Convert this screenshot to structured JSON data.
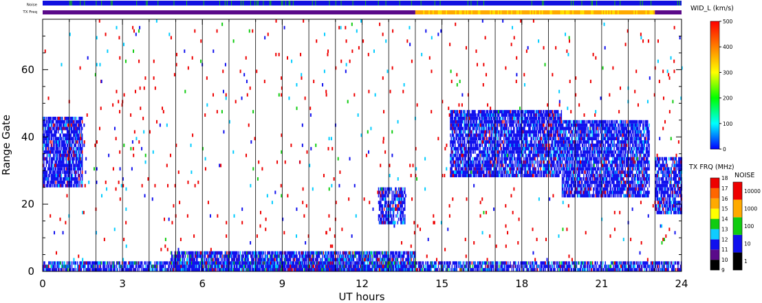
{
  "chart_data": {
    "type": "heatmap",
    "title": "",
    "xlabel": "UT hours",
    "ylabel": "Range Gate",
    "xlim": [
      0,
      24
    ],
    "ylim": [
      0,
      75
    ],
    "x_ticks": [
      "0",
      "3",
      "6",
      "9",
      "12",
      "15",
      "18",
      "21",
      "24"
    ],
    "x_tick_values": [
      0,
      3,
      6,
      9,
      12,
      15,
      18,
      21,
      24
    ],
    "y_ticks": [
      "0",
      "20",
      "40",
      "60"
    ],
    "y_tick_values": [
      0,
      20,
      40,
      60
    ],
    "vertical_hour_lines": [
      1,
      2,
      3,
      4,
      5,
      6,
      7,
      8,
      9,
      10,
      11,
      12,
      13,
      14,
      15,
      16,
      17,
      18,
      19,
      20,
      21,
      22,
      23
    ],
    "grid": false,
    "status_bars": {
      "noise_label": "Noise",
      "txfreq_label": "TX Freq",
      "noise_color": "#1010e0",
      "noise_flicker_color": "#10c010",
      "txfreq_segments": [
        {
          "start": 0,
          "end": 14,
          "color": "#5a0a8a"
        },
        {
          "start": 14,
          "end": 23,
          "color": "#ffaa00"
        },
        {
          "start": 23,
          "end": 24,
          "color": "#5a0a8a"
        }
      ]
    },
    "regions": [
      {
        "name": "early-echo",
        "t0": 0.0,
        "t1": 1.5,
        "g0": 25,
        "g1": 46,
        "density": 0.85
      },
      {
        "name": "ground-scatter",
        "t0": 0.0,
        "t1": 24.0,
        "g0": 0,
        "g1": 3,
        "density": 0.7
      },
      {
        "name": "midday-ground-scatter",
        "t0": 4.8,
        "t1": 14.0,
        "g0": 0,
        "g1": 6,
        "density": 0.75
      },
      {
        "name": "patch-13ut",
        "t0": 12.6,
        "t1": 13.6,
        "g0": 14,
        "g1": 25,
        "density": 0.7
      },
      {
        "name": "evening-echo-a",
        "t0": 15.3,
        "t1": 19.5,
        "g0": 28,
        "g1": 48,
        "density": 0.8
      },
      {
        "name": "evening-echo-b",
        "t0": 19.5,
        "t1": 22.8,
        "g0": 22,
        "g1": 45,
        "density": 0.8
      },
      {
        "name": "late-echo",
        "t0": 23.0,
        "t1": 24.0,
        "g0": 17,
        "g1": 34,
        "density": 0.75
      }
    ],
    "colorbars": {
      "wid": {
        "label": "WID_L (km/s)",
        "min": 0,
        "max": 500,
        "tick_labels": [
          "0",
          "100",
          "200",
          "300",
          "400",
          "500"
        ],
        "stops": [
          "#0000ff",
          "#00ffff",
          "#00ff00",
          "#ffff00",
          "#ff8000",
          "#ff0000"
        ]
      },
      "txfreq": {
        "label": "TX FRQ (MHz)",
        "tick_labels": [
          "9",
          "10",
          "11",
          "12",
          "13",
          "14",
          "15",
          "16",
          "17",
          "18"
        ],
        "colors": [
          "#000000",
          "#5a0a8a",
          "#1010ee",
          "#10ccff",
          "#10cc10",
          "#ffff00",
          "#ffaa00",
          "#ff6600",
          "#ee0000"
        ]
      },
      "noise": {
        "label": "NOISE",
        "tick_labels": [
          "1",
          "10",
          "100",
          "1000",
          "10000"
        ],
        "colors": [
          "#000000",
          "#1010ee",
          "#10cc10",
          "#ffaa00",
          "#ee0000"
        ]
      }
    }
  }
}
